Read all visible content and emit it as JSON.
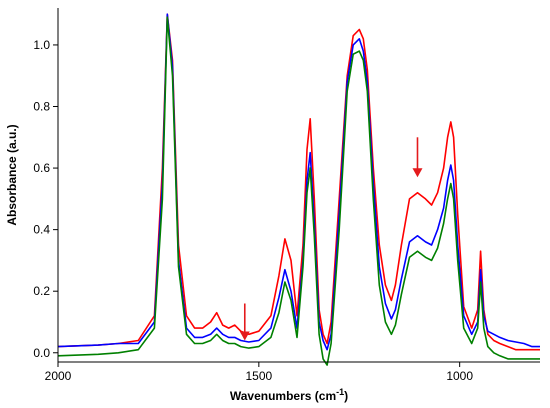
{
  "chart_data": {
    "type": "line",
    "title": "",
    "xlabel": "Wavenumbers (cm",
    "xlabel_sup": "-1",
    "xlabel_end": ")",
    "ylabel": "Absorbance (a.u.)",
    "xlim": [
      2000,
      800
    ],
    "x_reversed": true,
    "ylim": [
      -0.03,
      1.12
    ],
    "x_ticks": [
      2000,
      1500,
      1000
    ],
    "x_tick_labels": [
      "2000",
      "1500",
      "1000"
    ],
    "y_ticks": [
      0.0,
      0.2,
      0.4,
      0.6,
      0.8,
      1.0
    ],
    "y_tick_labels": [
      "0.0",
      "0.2",
      "0.4",
      "0.6",
      "0.8",
      "1.0"
    ],
    "grid": false,
    "legend": "none",
    "annotations": [
      {
        "type": "arrow",
        "color": "#e41a1c",
        "x": 1535,
        "y_from": 0.16,
        "y_to": 0.04
      },
      {
        "type": "arrow",
        "color": "#e41a1c",
        "x": 1105,
        "y_from": 0.7,
        "y_to": 0.57
      }
    ],
    "series": [
      {
        "color": "#ff0000",
        "x": [
          2000,
          1900,
          1850,
          1800,
          1760,
          1740,
          1728,
          1715,
          1700,
          1680,
          1660,
          1640,
          1620,
          1605,
          1590,
          1575,
          1560,
          1545,
          1525,
          1500,
          1470,
          1450,
          1435,
          1420,
          1405,
          1390,
          1380,
          1372,
          1362,
          1350,
          1340,
          1330,
          1320,
          1300,
          1280,
          1265,
          1250,
          1240,
          1230,
          1215,
          1200,
          1185,
          1170,
          1160,
          1145,
          1125,
          1105,
          1085,
          1070,
          1055,
          1040,
          1030,
          1022,
          1015,
          1005,
          990,
          970,
          955,
          948,
          940,
          930,
          915,
          900,
          880,
          860,
          840,
          820,
          800
        ],
        "y": [
          0.02,
          0.025,
          0.03,
          0.04,
          0.12,
          0.6,
          1.1,
          0.95,
          0.35,
          0.12,
          0.08,
          0.08,
          0.1,
          0.13,
          0.09,
          0.08,
          0.09,
          0.07,
          0.06,
          0.07,
          0.12,
          0.25,
          0.37,
          0.3,
          0.12,
          0.35,
          0.66,
          0.76,
          0.5,
          0.14,
          0.06,
          0.03,
          0.1,
          0.5,
          0.9,
          1.03,
          1.05,
          1.02,
          0.92,
          0.6,
          0.35,
          0.22,
          0.17,
          0.22,
          0.35,
          0.5,
          0.52,
          0.5,
          0.48,
          0.52,
          0.6,
          0.7,
          0.75,
          0.7,
          0.45,
          0.15,
          0.08,
          0.14,
          0.33,
          0.14,
          0.06,
          0.04,
          0.03,
          0.02,
          0.01,
          0.01,
          0.01,
          0.01
        ]
      },
      {
        "color": "#0000ff",
        "x": [
          2000,
          1900,
          1850,
          1800,
          1760,
          1740,
          1728,
          1715,
          1700,
          1680,
          1660,
          1640,
          1620,
          1605,
          1590,
          1575,
          1560,
          1545,
          1525,
          1500,
          1470,
          1450,
          1435,
          1420,
          1405,
          1390,
          1380,
          1372,
          1362,
          1350,
          1340,
          1330,
          1320,
          1300,
          1280,
          1265,
          1250,
          1240,
          1230,
          1215,
          1200,
          1185,
          1170,
          1160,
          1145,
          1125,
          1105,
          1085,
          1070,
          1055,
          1040,
          1030,
          1022,
          1015,
          1005,
          990,
          970,
          955,
          948,
          940,
          930,
          915,
          900,
          880,
          860,
          840,
          820,
          800
        ],
        "y": [
          0.02,
          0.025,
          0.03,
          0.03,
          0.1,
          0.55,
          1.1,
          0.93,
          0.3,
          0.08,
          0.05,
          0.05,
          0.06,
          0.08,
          0.06,
          0.05,
          0.05,
          0.04,
          0.035,
          0.04,
          0.08,
          0.18,
          0.27,
          0.2,
          0.08,
          0.3,
          0.56,
          0.65,
          0.42,
          0.1,
          0.04,
          0.01,
          0.06,
          0.45,
          0.88,
          1.0,
          1.02,
          0.98,
          0.88,
          0.55,
          0.28,
          0.16,
          0.11,
          0.14,
          0.24,
          0.36,
          0.38,
          0.36,
          0.35,
          0.4,
          0.47,
          0.56,
          0.61,
          0.56,
          0.35,
          0.12,
          0.06,
          0.1,
          0.27,
          0.12,
          0.07,
          0.06,
          0.05,
          0.04,
          0.035,
          0.03,
          0.02,
          0.02
        ]
      },
      {
        "color": "#008000",
        "x": [
          2000,
          1900,
          1850,
          1800,
          1760,
          1740,
          1728,
          1715,
          1700,
          1680,
          1660,
          1640,
          1620,
          1605,
          1590,
          1575,
          1560,
          1545,
          1525,
          1500,
          1470,
          1450,
          1435,
          1420,
          1405,
          1390,
          1380,
          1372,
          1362,
          1350,
          1340,
          1330,
          1320,
          1300,
          1280,
          1265,
          1250,
          1240,
          1230,
          1215,
          1200,
          1185,
          1170,
          1160,
          1145,
          1125,
          1105,
          1085,
          1070,
          1055,
          1040,
          1030,
          1022,
          1015,
          1005,
          990,
          970,
          955,
          948,
          940,
          930,
          915,
          900,
          880,
          860,
          840,
          820,
          800
        ],
        "y": [
          -0.01,
          -0.005,
          0.0,
          0.01,
          0.08,
          0.5,
          1.09,
          0.9,
          0.28,
          0.06,
          0.03,
          0.03,
          0.04,
          0.06,
          0.04,
          0.03,
          0.03,
          0.02,
          0.015,
          0.02,
          0.05,
          0.13,
          0.23,
          0.17,
          0.05,
          0.28,
          0.52,
          0.6,
          0.38,
          0.06,
          -0.02,
          -0.04,
          0.03,
          0.4,
          0.85,
          0.97,
          0.98,
          0.95,
          0.85,
          0.5,
          0.22,
          0.1,
          0.06,
          0.09,
          0.19,
          0.31,
          0.33,
          0.31,
          0.3,
          0.34,
          0.42,
          0.5,
          0.55,
          0.5,
          0.3,
          0.08,
          0.03,
          0.08,
          0.23,
          0.08,
          0.02,
          0.0,
          -0.01,
          -0.02,
          -0.02,
          -0.02,
          -0.02,
          -0.02
        ]
      }
    ]
  }
}
